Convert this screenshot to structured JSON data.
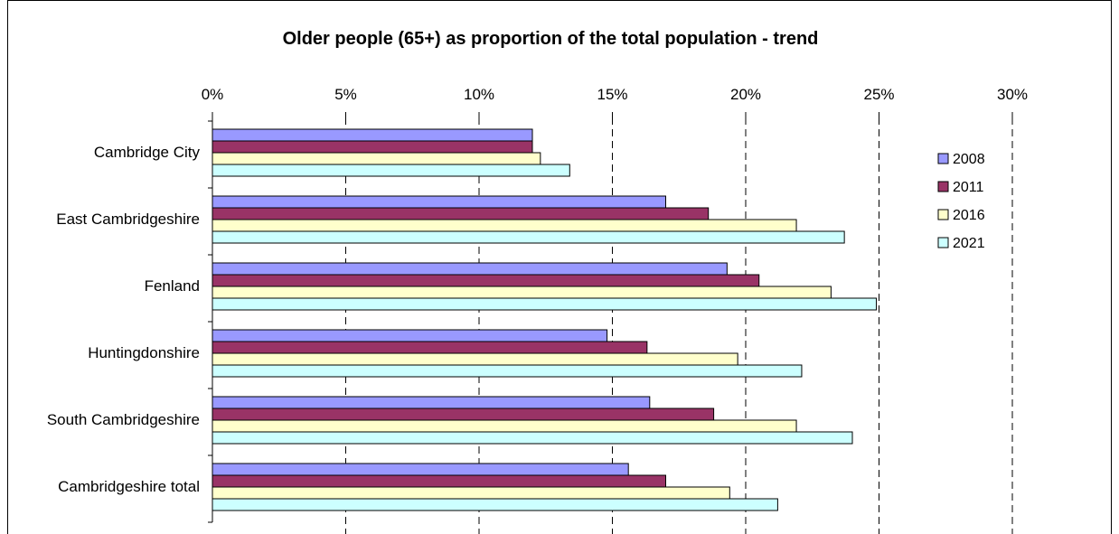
{
  "chart_data": {
    "type": "bar",
    "orientation": "horizontal",
    "title": "Older people (65+) as proportion of the total population - trend",
    "categories": [
      "Cambridge City",
      "East Cambridgeshire",
      "Fenland",
      "Huntingdonshire",
      "South Cambridgeshire",
      "Cambridgeshire total"
    ],
    "series": [
      {
        "name": "2008",
        "color": "#9999ff",
        "values": [
          12.0,
          17.0,
          19.3,
          14.8,
          16.4,
          15.6
        ]
      },
      {
        "name": "2011",
        "color": "#993366",
        "values": [
          12.0,
          18.6,
          20.5,
          16.3,
          18.8,
          17.0
        ]
      },
      {
        "name": "2016",
        "color": "#ffffcc",
        "values": [
          12.3,
          21.9,
          23.2,
          19.7,
          21.9,
          19.4
        ]
      },
      {
        "name": "2021",
        "color": "#ccffff",
        "values": [
          13.4,
          23.7,
          24.9,
          22.1,
          24.0,
          21.2
        ]
      }
    ],
    "x_ticks": [
      "0%",
      "5%",
      "10%",
      "15%",
      "20%",
      "25%",
      "30%"
    ],
    "xlim": [
      0,
      30
    ],
    "x_unit": "%",
    "xaxis_position": "top",
    "grid": "vertical dashed",
    "legend_position": "right",
    "xlabel": "",
    "ylabel": ""
  }
}
